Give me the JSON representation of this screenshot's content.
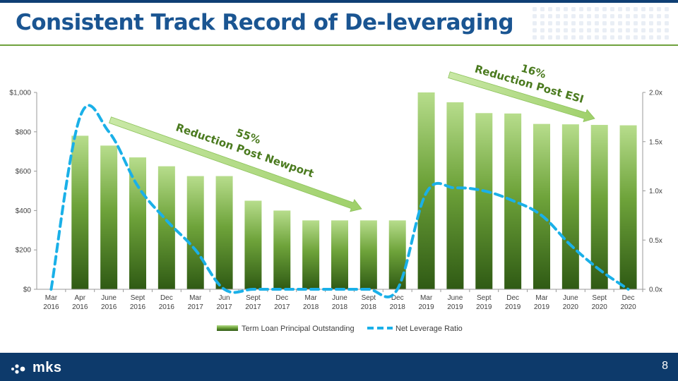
{
  "header": {
    "title": "Consistent Track Record of De-leveraging"
  },
  "footer": {
    "logo_text": "mks",
    "page_number": "8"
  },
  "colors": {
    "brand_blue": "#1a5592",
    "footer_navy": "#0d3a6b",
    "bar_green_top": "#b7dd8c",
    "bar_green_bottom": "#2f5a14",
    "line_blue": "#1ab0e8",
    "annotation_green": "#4a7a1e"
  },
  "chart_data": {
    "type": "bar",
    "categories": [
      [
        "Mar",
        "2016"
      ],
      [
        "Apr",
        "2016"
      ],
      [
        "June",
        "2016"
      ],
      [
        "Sept",
        "2016"
      ],
      [
        "Dec",
        "2016"
      ],
      [
        "Mar",
        "2017"
      ],
      [
        "Jun",
        "2017"
      ],
      [
        "Sept",
        "2017"
      ],
      [
        "Dec",
        "2017"
      ],
      [
        "Mar",
        "2018"
      ],
      [
        "June",
        "2018"
      ],
      [
        "Sept",
        "2018"
      ],
      [
        "Dec",
        "2018"
      ],
      [
        "Mar",
        "2019"
      ],
      [
        "June",
        "2019"
      ],
      [
        "Sept",
        "2019"
      ],
      [
        "Dec",
        "2019"
      ],
      [
        "Mar",
        "2019"
      ],
      [
        "June",
        "2020"
      ],
      [
        "Sept",
        "2020"
      ],
      [
        "Dec",
        "2020"
      ]
    ],
    "series": [
      {
        "name": "Term Loan Principal Outstanding",
        "type": "bar",
        "axis": "left",
        "values": [
          0,
          780,
          730,
          670,
          625,
          575,
          575,
          450,
          400,
          350,
          350,
          350,
          350,
          1000,
          950,
          895,
          893,
          840,
          838,
          835,
          833
        ]
      },
      {
        "name": "Net Leverage Ratio",
        "type": "line",
        "style": "dashed",
        "axis": "right",
        "values": [
          0.0,
          1.75,
          1.6,
          1.05,
          0.7,
          0.4,
          0.0,
          0.0,
          0.0,
          0.0,
          0.0,
          0.0,
          0.0,
          0.98,
          1.03,
          1.0,
          0.9,
          0.75,
          0.45,
          0.2,
          0.0
        ]
      }
    ],
    "y_left": {
      "ylim": [
        0,
        1000
      ],
      "ticks": [
        0,
        200,
        400,
        600,
        800,
        1000
      ],
      "tick_labels": [
        "$0",
        "$200",
        "$400",
        "$600",
        "$800",
        "$1,000"
      ]
    },
    "y_right": {
      "ylim": [
        0,
        2.0
      ],
      "ticks": [
        0,
        0.5,
        1.0,
        1.5,
        2.0
      ],
      "tick_labels": [
        "0.0x",
        "0.5x",
        "1.0x",
        "1.5x",
        "2.0x"
      ]
    },
    "annotations": [
      {
        "pct": "55%",
        "text": "Reduction Post Newport"
      },
      {
        "pct": "16%",
        "text": "Reduction Post ESI"
      }
    ],
    "legend_position": "bottom",
    "grid": false
  }
}
